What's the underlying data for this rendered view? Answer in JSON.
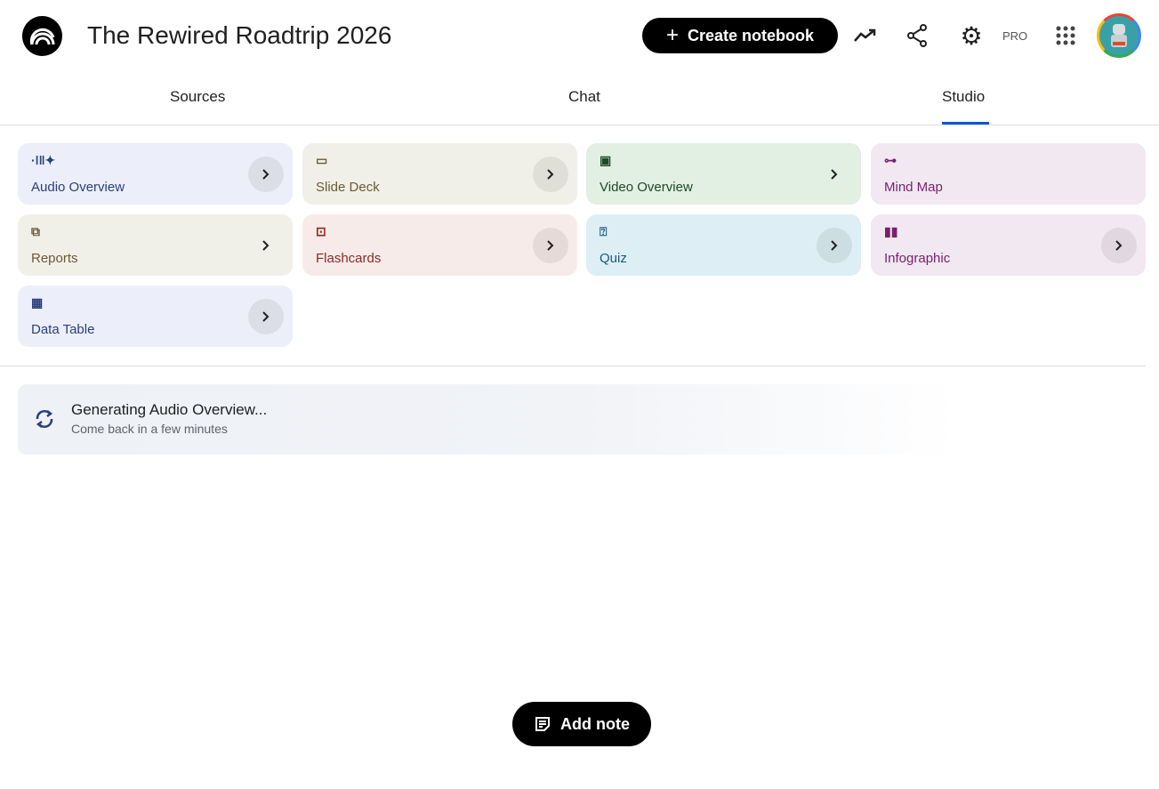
{
  "header": {
    "title": "The Rewired Roadtrip 2026",
    "create_label": "Create notebook",
    "pro_label": "PRO"
  },
  "tabs": [
    {
      "label": "Sources"
    },
    {
      "label": "Chat"
    },
    {
      "label": "Studio",
      "active": true
    }
  ],
  "studio": {
    "cards": [
      {
        "label": "Audio Overview",
        "icon": "audio-waveform-icon",
        "bg": "#eceef9",
        "color": "#2a3f7a"
      },
      {
        "label": "Slide Deck",
        "icon": "slides-icon",
        "bg": "#f1f0e8",
        "color": "#6b5a36"
      },
      {
        "label": "Video Overview",
        "icon": "video-icon",
        "bg": "#e2efe3",
        "color": "#1e4a26"
      },
      {
        "label": "Mind Map",
        "icon": "mind-map-icon",
        "bg": "#f1e8f1",
        "color": "#7a1f6e"
      },
      {
        "label": "Reports",
        "icon": "reports-icon",
        "bg": "#f1f0e8",
        "color": "#6b5a36"
      },
      {
        "label": "Flashcards",
        "icon": "flashcards-icon",
        "bg": "#f7ebe9",
        "color": "#8a2a22"
      },
      {
        "label": "Quiz",
        "icon": "quiz-icon",
        "bg": "#ddeff5",
        "color": "#1a5a78"
      },
      {
        "label": "Infographic",
        "icon": "infographic-icon",
        "bg": "#f1e8f1",
        "color": "#7a1f6e"
      },
      {
        "label": "Data Table",
        "icon": "table-icon",
        "bg": "#eceef9",
        "color": "#2a3f7a"
      }
    ],
    "generating": {
      "title": "Generating Audio Overview...",
      "subtitle": "Come back in a few minutes"
    }
  },
  "add_note_label": "Add note"
}
